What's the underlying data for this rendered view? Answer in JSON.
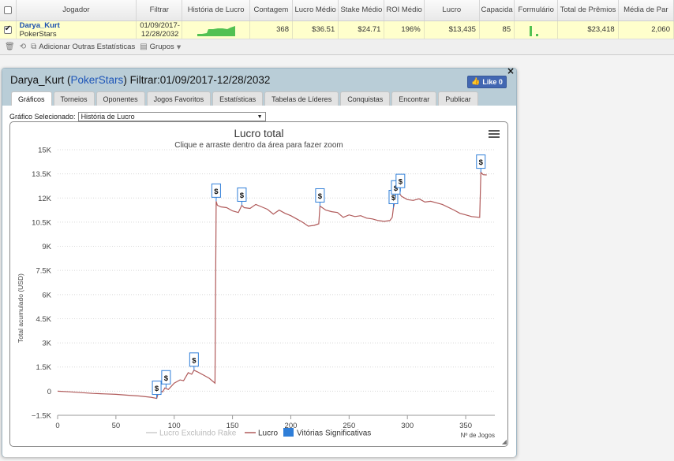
{
  "table": {
    "headers": [
      "",
      "Jogador",
      "Filtrar",
      "História de Lucro",
      "Contagem",
      "Lucro Médio",
      "Stake Médio",
      "ROI Médio",
      "Lucro",
      "Capacida",
      "Formulário",
      "Total de Prêmios",
      "Média de Par"
    ],
    "row": {
      "player": "Darya_Kurt",
      "site": "PokerStars",
      "filter_line1": "01/09/2017-",
      "filter_line2": "12/28/2032",
      "contagem": "368",
      "lucro_medio": "$36.51",
      "stake_medio": "$24.71",
      "roi_medio": "196%",
      "lucro": "$13,435",
      "capacidade": "85",
      "total_premios": "$23,418",
      "media_par": "2,060"
    }
  },
  "toolbar": {
    "add_stats": "Adicionar Outras Estatísticas",
    "groups": "Grupos"
  },
  "modal": {
    "title_player": "Darya_Kurt",
    "title_site": "PokerStars",
    "title_filter": "Filtrar:01/09/2017-12/28/2032",
    "fb_like": "Like 0",
    "close": "×",
    "tabs": [
      "Gráficos",
      "Torneios",
      "Oponentes",
      "Jogos Favoritos",
      "Estatísticas",
      "Tabelas de Líderes",
      "Conquistas",
      "Encontrar",
      "Publicar"
    ],
    "selector_label": "Gráfico Selecionado:",
    "selector_value": "História de Lucro"
  },
  "colors": {
    "profit_line": "#b05a5a",
    "rake_line": "#cccccc",
    "flag_border": "#2f7ed8",
    "form_bar": "#52c152"
  },
  "chart_data": {
    "type": "line",
    "title": "Lucro total",
    "subtitle": "Clique e arraste dentro da área para fazer zoom",
    "ylabel": "Total acumulado (USD)",
    "xlabel": "Nº de Jogos",
    "xlim": [
      0,
      375
    ],
    "ylim": [
      -1500,
      15000
    ],
    "xticks": [
      0,
      50,
      100,
      150,
      200,
      250,
      300,
      350
    ],
    "yticks": [
      -1500,
      0,
      1500,
      3000,
      4500,
      6000,
      7500,
      9000,
      10500,
      12000,
      13500,
      15000
    ],
    "ytick_labels": [
      "−1.5K",
      "0",
      "1.5K",
      "3K",
      "4.5K",
      "6K",
      "7.5K",
      "9K",
      "10.5K",
      "12K",
      "13.5K",
      "15K"
    ],
    "grid": true,
    "legend": [
      "Lucro Excluindo Rake",
      "Lucro",
      "Vitórias Significativas"
    ],
    "legend_position": "bottom",
    "series": [
      {
        "name": "Lucro",
        "x": [
          0,
          10,
          20,
          30,
          40,
          50,
          60,
          70,
          80,
          85,
          87,
          90,
          92,
          95,
          100,
          105,
          108,
          112,
          115,
          117,
          120,
          125,
          130,
          135,
          136,
          137,
          140,
          145,
          150,
          155,
          158,
          160,
          165,
          170,
          175,
          180,
          185,
          190,
          195,
          200,
          205,
          210,
          215,
          220,
          224,
          225,
          230,
          235,
          240,
          245,
          250,
          255,
          260,
          265,
          270,
          275,
          280,
          285,
          287,
          288,
          290,
          292,
          295,
          300,
          305,
          310,
          315,
          320,
          325,
          330,
          340,
          345,
          350,
          355,
          362,
          363,
          365,
          368
        ],
        "y": [
          0,
          -40,
          -90,
          -140,
          -170,
          -200,
          -250,
          -300,
          -380,
          -450,
          50,
          -50,
          200,
          100,
          500,
          700,
          650,
          1150,
          1050,
          1300,
          1200,
          1000,
          800,
          500,
          11800,
          11550,
          11450,
          11400,
          11200,
          11100,
          11550,
          11400,
          11350,
          11600,
          11450,
          11300,
          11000,
          11250,
          11050,
          10900,
          10700,
          10500,
          10250,
          10300,
          10400,
          11500,
          11250,
          11150,
          11100,
          10800,
          10950,
          10850,
          10900,
          10750,
          10700,
          10600,
          10550,
          10600,
          10800,
          11400,
          12000,
          12400,
          12100,
          11900,
          11850,
          11950,
          11750,
          11800,
          11700,
          11600,
          11250,
          11050,
          10950,
          10850,
          10800,
          13600,
          13450,
          13435
        ]
      },
      {
        "name": "Lucro Excluindo Rake",
        "x": [],
        "y": []
      }
    ],
    "flags": [
      {
        "x": 85,
        "y": -450,
        "label": "$"
      },
      {
        "x": 93,
        "y": 200,
        "label": "$"
      },
      {
        "x": 117,
        "y": 1300,
        "label": "$"
      },
      {
        "x": 136,
        "y": 11800,
        "label": "$"
      },
      {
        "x": 158,
        "y": 11550,
        "label": "$"
      },
      {
        "x": 225,
        "y": 11500,
        "label": "$"
      },
      {
        "x": 288,
        "y": 11400,
        "label": "$"
      },
      {
        "x": 290,
        "y": 12000,
        "label": "$"
      },
      {
        "x": 294,
        "y": 12400,
        "label": "$"
      },
      {
        "x": 363,
        "y": 13600,
        "label": "$"
      }
    ]
  }
}
